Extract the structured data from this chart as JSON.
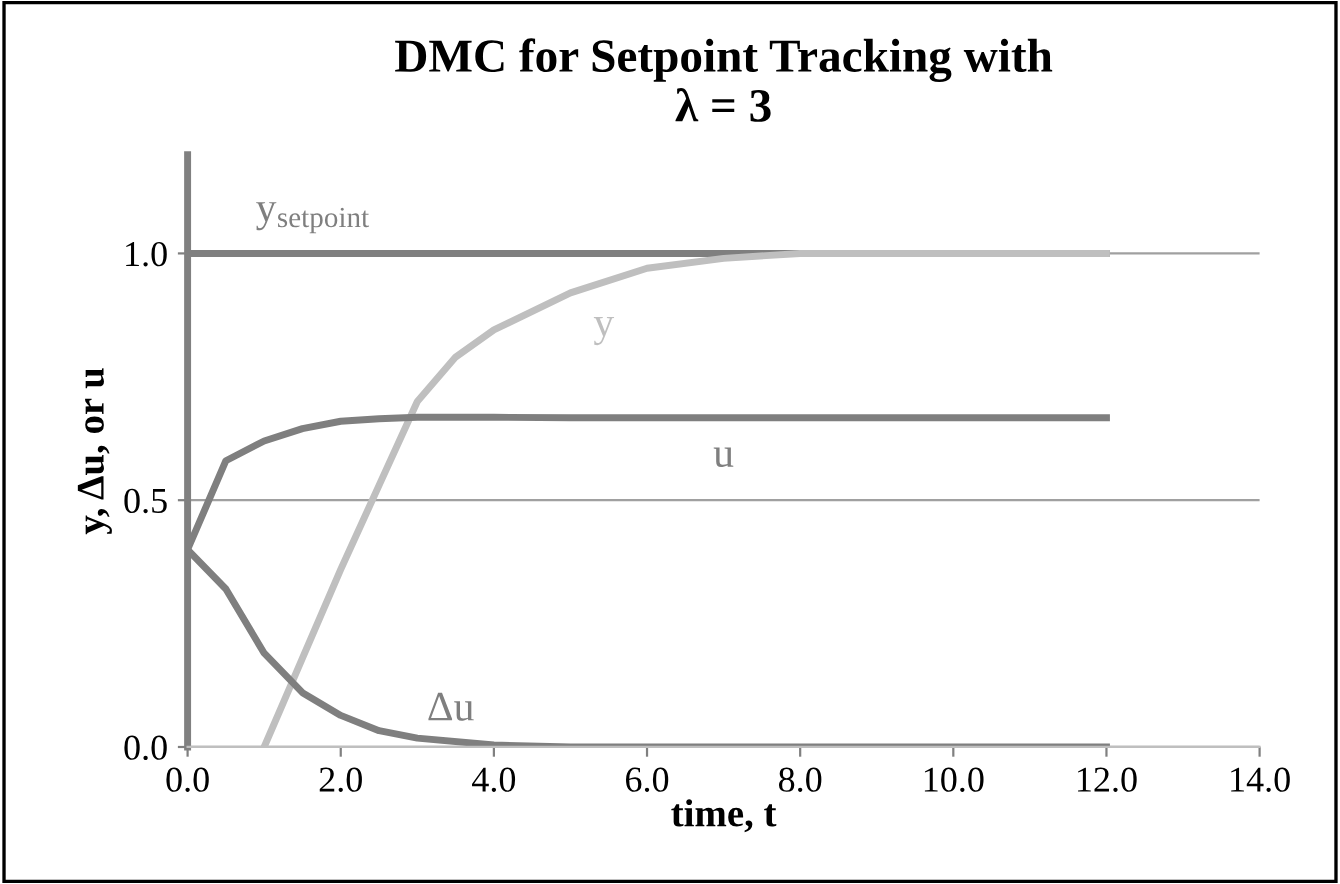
{
  "chart_data": {
    "type": "line",
    "title": "DMC for Setpoint Tracking with\nλ = 3",
    "xlabel": "time, t",
    "ylabel": "y, Δu, or u",
    "x": [
      0,
      0.5,
      1,
      1.5,
      2,
      2.5,
      3,
      4,
      5,
      6,
      7,
      8,
      10,
      12
    ],
    "series": [
      {
        "name": "y$_{setpoint}$",
        "color": "#7f7f7f",
        "values": [
          1,
          1,
          1,
          1,
          1,
          1,
          1,
          1,
          1,
          1,
          1,
          1,
          1,
          1
        ]
      },
      {
        "name": "y",
        "color": "#bfbfbf",
        "x": [
          1,
          1.25,
          1.5,
          2,
          2.5,
          3,
          3.5,
          4,
          5,
          6,
          7,
          8,
          10,
          12
        ],
        "values": [
          0,
          0.09,
          0.18,
          0.36,
          0.53,
          0.7,
          0.79,
          0.845,
          0.92,
          0.97,
          0.99,
          1.0,
          1.0,
          1.0
        ]
      },
      {
        "name": "u",
        "color": "#7f7f7f",
        "values": [
          0.4,
          0.58,
          0.62,
          0.645,
          0.66,
          0.665,
          0.668,
          0.668,
          0.667,
          0.667,
          0.667,
          0.667,
          0.667,
          0.667
        ]
      },
      {
        "name": "Δu",
        "color": "#7f7f7f",
        "values": [
          0.4,
          0.32,
          0.19,
          0.11,
          0.064,
          0.033,
          0.018,
          0.004,
          0,
          0,
          0,
          0,
          0,
          0
        ]
      }
    ],
    "xlim": [
      0,
      14
    ],
    "xticks": [
      {
        "value": 0,
        "label": "0.0"
      },
      {
        "value": 2,
        "label": "2.0"
      },
      {
        "value": 4,
        "label": "4.0"
      },
      {
        "value": 6,
        "label": "6.0"
      },
      {
        "value": 8,
        "label": "8.0"
      },
      {
        "value": 10,
        "label": "10.0"
      },
      {
        "value": 12,
        "label": "12.0"
      },
      {
        "value": 14,
        "label": "14.0"
      }
    ],
    "ylim": [
      0,
      1.2
    ],
    "yticks": [
      {
        "value": 0,
        "label": "0.0"
      },
      {
        "value": 0.5,
        "label": "0.5"
      },
      {
        "value": 1.0,
        "label": "1.0"
      }
    ],
    "grid": "y",
    "legend": false,
    "marker": "none",
    "line_style": "solid"
  }
}
